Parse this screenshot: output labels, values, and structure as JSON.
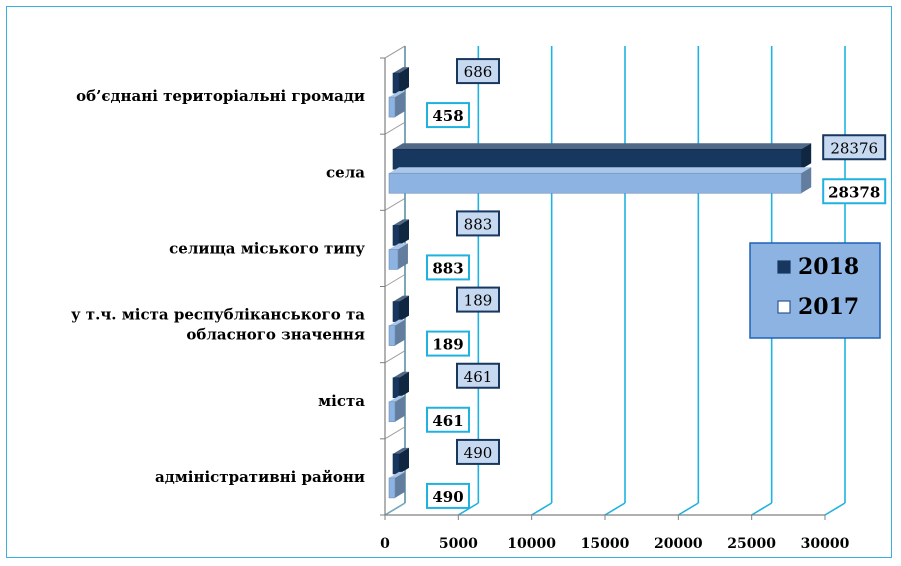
{
  "chart_data": {
    "type": "bar",
    "orientation": "horizontal",
    "categories": [
      "адміністративні райони",
      "міста",
      "у т.ч. міста республіканського та обласного значення",
      "селища міського типу",
      "села",
      "об’єднані територіальні громади"
    ],
    "category_lines": [
      [
        "адміністративні райони"
      ],
      [
        "міста"
      ],
      [
        "у т.ч. міста республіканського та",
        "обласного значення"
      ],
      [
        "селища міського типу"
      ],
      [
        "села"
      ],
      [
        "об’єднані територіальні громади"
      ]
    ],
    "series": [
      {
        "name": "2018",
        "values": [
          490,
          461,
          189,
          883,
          28376,
          686
        ],
        "color": "#17375e"
      },
      {
        "name": "2017",
        "values": [
          490,
          461,
          189,
          883,
          28378,
          458
        ],
        "color": "#8db3e2"
      }
    ],
    "xlim": [
      0,
      30000
    ],
    "xticks": [
      "0",
      "5000",
      "10000",
      "15000",
      "20000",
      "25000",
      "30000"
    ],
    "grid": true,
    "legend": "right"
  },
  "colors": {
    "frame": "#3ab0dc",
    "grid": "#1fb2e0",
    "label_2018_fill": "#c6d9f1",
    "label_2018_border": "#17375e",
    "label_2017_fill": "#ffffff",
    "label_2017_border": "#1fb2e0",
    "legend_fill": "#8db3e2",
    "legend_border": "#1f63b5"
  }
}
